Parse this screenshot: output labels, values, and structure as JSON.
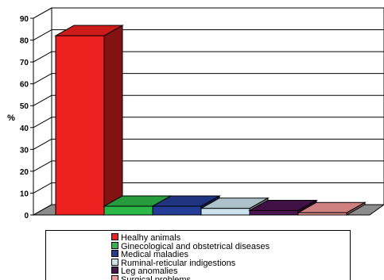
{
  "chart_data": {
    "type": "bar",
    "ylabel": "%",
    "ylim": [
      0,
      90
    ],
    "yticks": [
      "0",
      "10",
      "20",
      "30",
      "40",
      "50",
      "60",
      "70",
      "80",
      "90"
    ],
    "grid": true,
    "style": "3d",
    "legend_position": "bottom",
    "categories": [
      "Healhy animals",
      "Ginecological and obstetrical diseases",
      "Medical maladies",
      "Ruminal-reticular indigestions",
      "Leg anomalies",
      "Surgical problems"
    ],
    "values": [
      82,
      4,
      4,
      3,
      2,
      1
    ],
    "colors": [
      "#ef2020",
      "#2db84a",
      "#243c96",
      "#cce4ee",
      "#4a1450",
      "#f49898"
    ]
  }
}
